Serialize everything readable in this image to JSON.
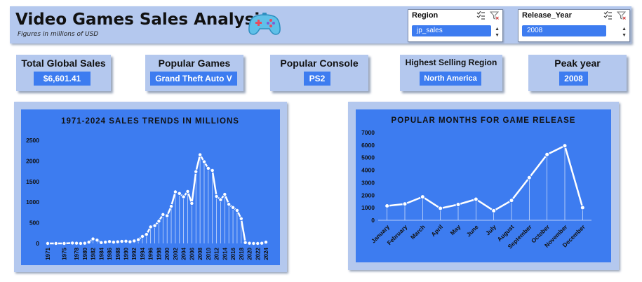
{
  "header": {
    "title": "Video Games Sales Analysis",
    "subtitle": "Figures in millions of USD",
    "logo_icon": "gamepad-icon"
  },
  "slicers": [
    {
      "label": "Region",
      "selected": "jp_sales"
    },
    {
      "label": "Release_Year",
      "selected": "2008"
    }
  ],
  "kpis": [
    {
      "label": "Total Global Sales",
      "value": "$6,601.41"
    },
    {
      "label": "Popular Games",
      "value": "Grand Theft Auto V"
    },
    {
      "label": "Popular Console",
      "value": "PS2"
    },
    {
      "label": "Highest Selling Region",
      "value": "North America"
    },
    {
      "label": "Peak year",
      "value": "2008"
    }
  ],
  "colors": {
    "panel": "#b4c8ee",
    "chart_bg": "#3d7cf0",
    "accent": "#3d7cf0",
    "line": "#ffffff"
  },
  "chart_data": [
    {
      "type": "line",
      "title": "1971-2024 SALES TRENDS IN MILLIONS",
      "xlabel": "",
      "ylabel": "",
      "ylim": [
        0,
        2500
      ],
      "yticks": [
        0,
        500,
        1000,
        1500,
        2000,
        2500
      ],
      "xtick_labels": [
        "1971",
        "1975",
        "1978",
        "1980",
        "1982",
        "1984",
        "1986",
        "1988",
        "1990",
        "1992",
        "1994",
        "1996",
        "1998",
        "2000",
        "2002",
        "2004",
        "2006",
        "2008",
        "2010",
        "2012",
        "2014",
        "2016",
        "2018",
        "2020",
        "2022",
        "2024"
      ],
      "x": [
        1971,
        1973,
        1975,
        1977,
        1978,
        1979,
        1980,
        1981,
        1982,
        1983,
        1984,
        1985,
        1986,
        1987,
        1988,
        1989,
        1990,
        1991,
        1992,
        1993,
        1994,
        1995,
        1996,
        1997,
        1998,
        1999,
        2000,
        2001,
        2002,
        2003,
        2004,
        2005,
        2006,
        2007,
        2008,
        2009,
        2010,
        2011,
        2012,
        2013,
        2014,
        2015,
        2016,
        2017,
        2018,
        2019,
        2020,
        2021,
        2022,
        2023,
        2024
      ],
      "values": [
        0,
        0,
        0,
        10,
        5,
        0,
        5,
        30,
        110,
        80,
        20,
        30,
        45,
        30,
        40,
        50,
        55,
        40,
        60,
        90,
        170,
        220,
        400,
        430,
        540,
        700,
        670,
        900,
        1250,
        1210,
        1130,
        1260,
        970,
        1740,
        2150,
        1980,
        1820,
        1770,
        1140,
        1060,
        1190,
        950,
        870,
        800,
        600,
        20,
        5,
        0,
        0,
        5,
        30
      ],
      "grid": false
    },
    {
      "type": "line",
      "title": "POPULAR MONTHS FOR GAME RELEASE",
      "xlabel": "",
      "ylabel": "",
      "ylim": [
        0,
        7000
      ],
      "yticks": [
        0,
        1000,
        2000,
        3000,
        4000,
        5000,
        6000,
        7000
      ],
      "categories": [
        "January",
        "February",
        "March",
        "April",
        "May",
        "June",
        "July",
        "August",
        "September",
        "October",
        "November",
        "December"
      ],
      "values": [
        1150,
        1300,
        1870,
        950,
        1260,
        1680,
        760,
        1580,
        3400,
        5250,
        5950,
        1010
      ],
      "grid": false
    }
  ]
}
